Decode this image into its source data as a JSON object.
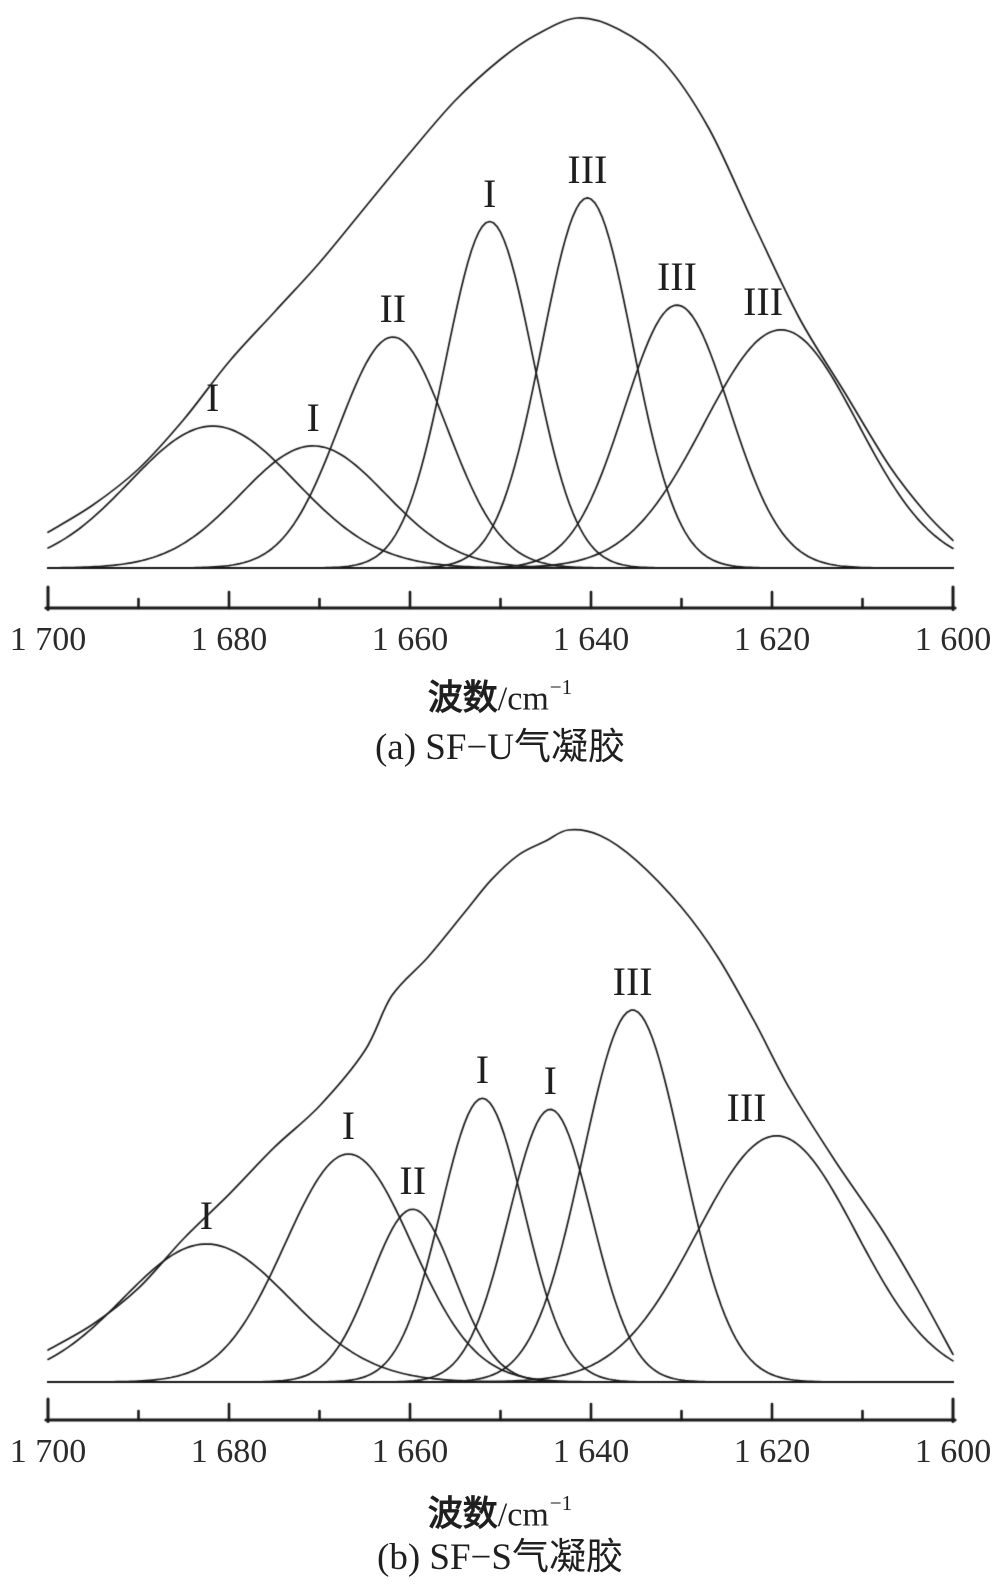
{
  "figure": {
    "background": "#ffffff",
    "line_color": "#1a1a1a",
    "text_color": "#262626"
  },
  "chart_data": [
    {
      "type": "line",
      "panel": "a",
      "caption": "(a) SF−U气凝胶",
      "xlabel_prefix": "波数",
      "xlabel_unit": "/cm",
      "xlabel_exponent": "−1",
      "x_axis": {
        "min": 1600,
        "max": 1700,
        "reversed": true,
        "major_ticks": [
          1700,
          1680,
          1660,
          1640,
          1620,
          1600
        ],
        "tick_labels": [
          "1 700",
          "1 680",
          "1 660",
          "1 640",
          "1 620",
          "1 600"
        ],
        "minor_ticks": [
          1690,
          1670,
          1650,
          1630,
          1610
        ]
      },
      "y_axis": {
        "visible": false,
        "scale": "relative intensity (0-1, arbitrary units)"
      },
      "envelope": [
        [
          1700,
          0.065
        ],
        [
          1695,
          0.115
        ],
        [
          1690,
          0.18
        ],
        [
          1685,
          0.27
        ],
        [
          1680,
          0.375
        ],
        [
          1675,
          0.465
        ],
        [
          1670,
          0.555
        ],
        [
          1665,
          0.655
        ],
        [
          1660,
          0.755
        ],
        [
          1655,
          0.85
        ],
        [
          1650,
          0.925
        ],
        [
          1646,
          0.97
        ],
        [
          1641.5,
          1.0
        ],
        [
          1637,
          0.98
        ],
        [
          1632,
          0.92
        ],
        [
          1627,
          0.8
        ],
        [
          1622,
          0.625
        ],
        [
          1617,
          0.455
        ],
        [
          1612,
          0.32
        ],
        [
          1607,
          0.185
        ],
        [
          1603,
          0.1
        ],
        [
          1600,
          0.05
        ]
      ],
      "peaks": [
        {
          "label": "I",
          "center": 1681.8,
          "amplitude": 0.258,
          "sigma": 9.2
        },
        {
          "label": "I",
          "center": 1670.7,
          "amplitude": 0.222,
          "sigma": 8.0
        },
        {
          "label": "II",
          "center": 1661.9,
          "amplitude": 0.42,
          "sigma": 6.0
        },
        {
          "label": "I",
          "center": 1651.2,
          "amplitude": 0.63,
          "sigma": 4.8
        },
        {
          "label": "III",
          "center": 1640.4,
          "amplitude": 0.673,
          "sigma": 5.0
        },
        {
          "label": "III",
          "center": 1630.5,
          "amplitude": 0.478,
          "sigma": 5.8
        },
        {
          "label": "III",
          "center": 1619.0,
          "amplitude": 0.433,
          "sigma": 8.5,
          "label_dx": -18
        }
      ]
    },
    {
      "type": "line",
      "panel": "b",
      "caption": "(b) SF−S气凝胶",
      "xlabel_prefix": "波数",
      "xlabel_unit": "/cm",
      "xlabel_exponent": "−1",
      "x_axis": {
        "min": 1600,
        "max": 1700,
        "reversed": true,
        "major_ticks": [
          1700,
          1680,
          1660,
          1640,
          1620,
          1600
        ],
        "tick_labels": [
          "1 700",
          "1 680",
          "1 660",
          "1 640",
          "1 620",
          "1 600"
        ],
        "minor_ticks": [
          1690,
          1670,
          1650,
          1630,
          1610
        ]
      },
      "y_axis": {
        "visible": false,
        "scale": "relative intensity (0-1, arbitrary units)"
      },
      "envelope": [
        [
          1700,
          0.058
        ],
        [
          1695,
          0.105
        ],
        [
          1690,
          0.17
        ],
        [
          1685,
          0.26
        ],
        [
          1680,
          0.34
        ],
        [
          1675,
          0.425
        ],
        [
          1670,
          0.5
        ],
        [
          1665,
          0.6
        ],
        [
          1662,
          0.7
        ],
        [
          1658,
          0.77
        ],
        [
          1654,
          0.85
        ],
        [
          1651,
          0.91
        ],
        [
          1648,
          0.955
        ],
        [
          1645,
          0.98
        ],
        [
          1642.5,
          1.0
        ],
        [
          1639,
          0.99
        ],
        [
          1635,
          0.945
        ],
        [
          1630,
          0.86
        ],
        [
          1626,
          0.77
        ],
        [
          1622,
          0.655
        ],
        [
          1618,
          0.53
        ],
        [
          1613,
          0.4
        ],
        [
          1608,
          0.28
        ],
        [
          1604,
          0.17
        ],
        [
          1600,
          0.05
        ]
      ],
      "peaks": [
        {
          "label": "I",
          "center": 1682.5,
          "amplitude": 0.25,
          "sigma": 9.2
        },
        {
          "label": "I",
          "center": 1666.8,
          "amplitude": 0.413,
          "sigma": 7.0
        },
        {
          "label": "II",
          "center": 1659.7,
          "amplitude": 0.313,
          "sigma": 4.6
        },
        {
          "label": "I",
          "center": 1652.0,
          "amplitude": 0.514,
          "sigma": 4.6
        },
        {
          "label": "I",
          "center": 1644.5,
          "amplitude": 0.494,
          "sigma": 4.6
        },
        {
          "label": "III",
          "center": 1635.4,
          "amplitude": 0.674,
          "sigma": 5.5
        },
        {
          "label": "III",
          "center": 1619.5,
          "amplitude": 0.446,
          "sigma": 8.8,
          "label_dx": -30
        }
      ]
    }
  ]
}
